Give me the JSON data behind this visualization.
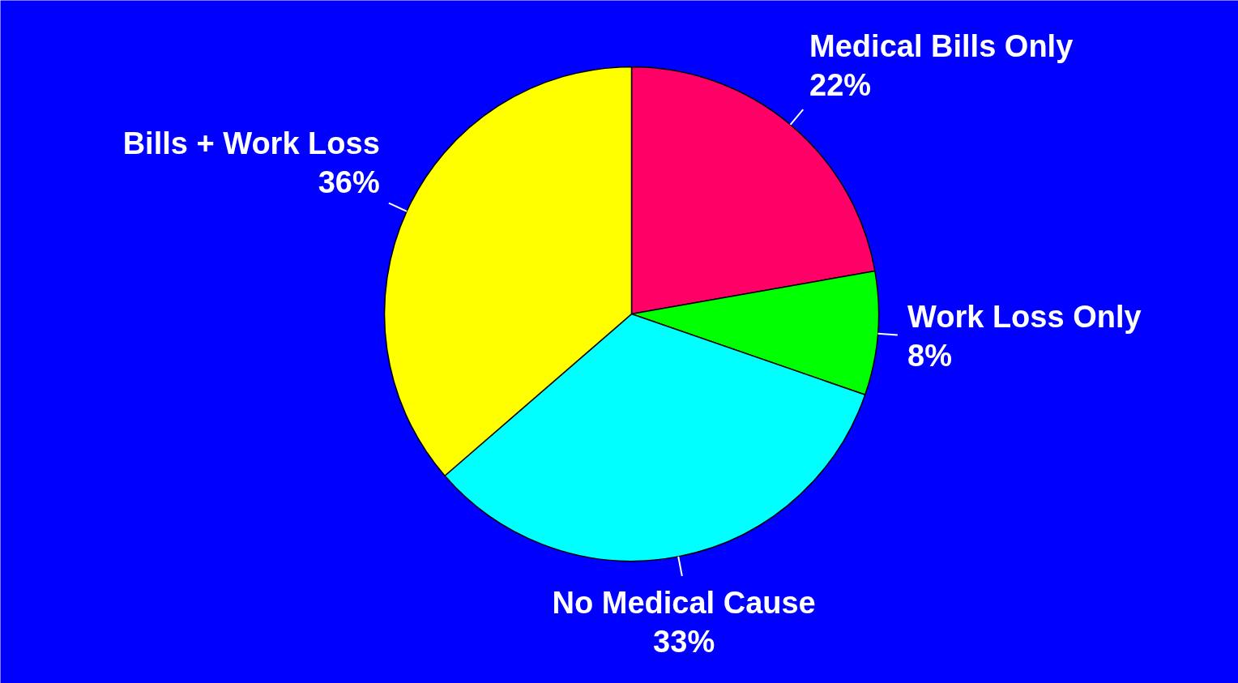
{
  "chart_data": {
    "type": "pie",
    "categories": [
      "Medical Bills Only",
      "Work Loss Only",
      "No Medical Cause",
      "Bills + Work Loss"
    ],
    "values": [
      22,
      8,
      33,
      36
    ],
    "value_labels": [
      "22%",
      "8%",
      "33%",
      "36%"
    ],
    "colors": [
      "#ff0066",
      "#00ff00",
      "#00ffff",
      "#ffff00"
    ]
  }
}
